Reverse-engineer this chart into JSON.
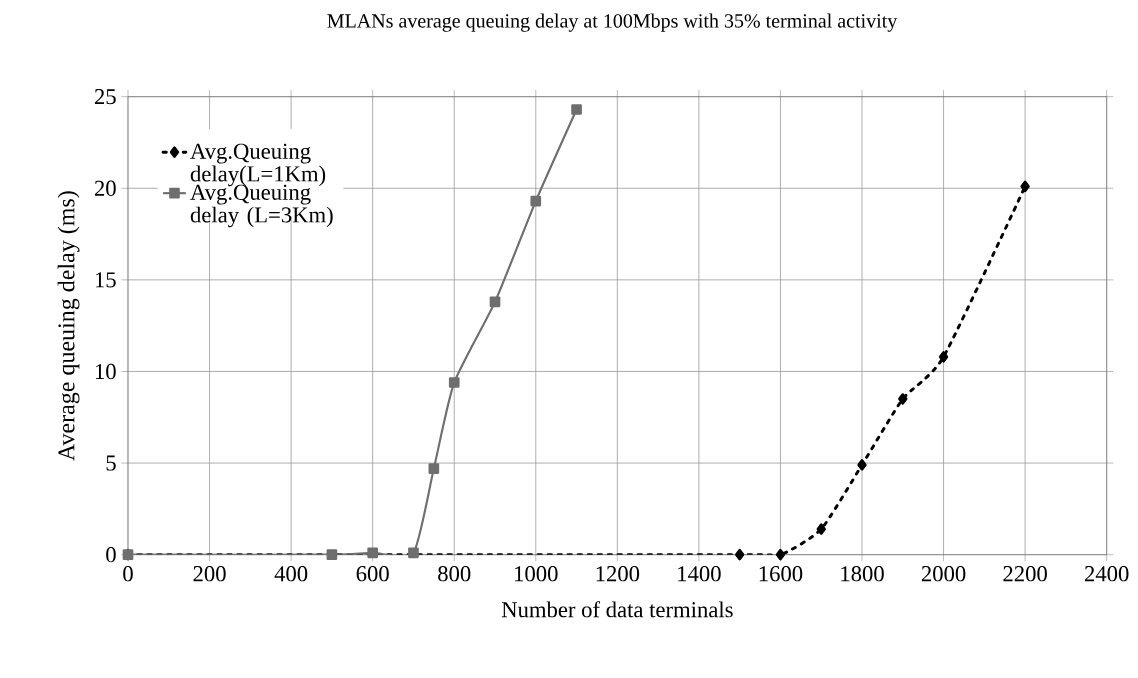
{
  "chart_data": {
    "type": "line",
    "title": "MLANs average queuing delay at 100Mbps with 35% terminal activity",
    "xlabel": "Number of data terminals",
    "ylabel": "Average queuing delay (ms)",
    "series": [
      {
        "name": "Avg.Queuing delay(L=1Km)",
        "color": "#000000",
        "marker": "diamond",
        "line_style": "dotted",
        "x": [
          0,
          1500,
          1600,
          1700,
          1800,
          1900,
          2000,
          2200
        ],
        "values": [
          0,
          0,
          0,
          1.4,
          4.9,
          8.5,
          10.8,
          20.1
        ]
      },
      {
        "name": "Avg.Queuing delay (L=3Km)",
        "color": "#6e6e6e",
        "marker": "square",
        "line_style": "solid",
        "x": [
          0,
          500,
          600,
          700,
          750,
          800,
          900,
          1000,
          1100
        ],
        "values": [
          0,
          0,
          0.1,
          0.1,
          4.7,
          9.4,
          13.8,
          19.3,
          24.3
        ]
      }
    ],
    "xlim": [
      0,
      2400
    ],
    "xticks": [
      0,
      200,
      400,
      600,
      800,
      1000,
      1200,
      1400,
      1600,
      1800,
      2000,
      2200,
      2400
    ],
    "ylim": [
      0,
      25
    ],
    "yticks": [
      0,
      5,
      10,
      15,
      20,
      25
    ],
    "grid": true,
    "legend": "top left"
  }
}
